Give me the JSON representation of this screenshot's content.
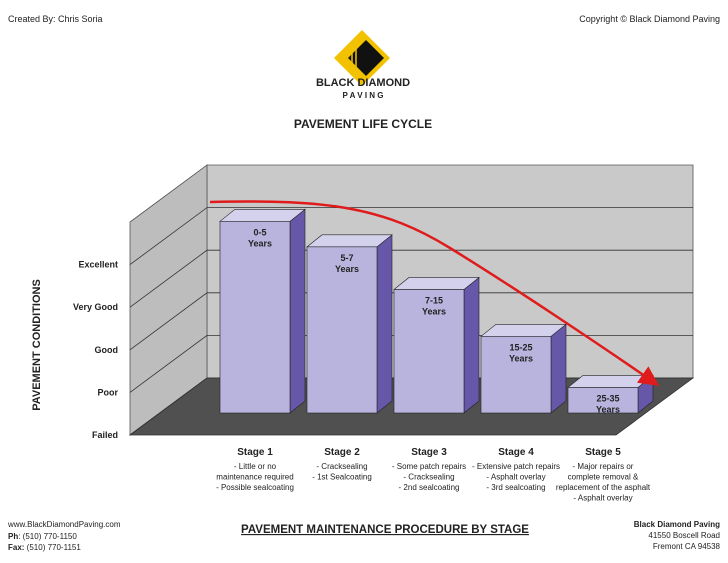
{
  "header": {
    "credit": "Created By: Chris Soria",
    "copyright": "Copyright © Black Diamond Paving",
    "brand": "BLACK DIAMOND",
    "brand_sub": "P A V I N G"
  },
  "chart_data": {
    "type": "bar3d",
    "title": "PAVEMENT LIFE CYCLE",
    "y_label": "PAVEMENT CONDITIONS",
    "categories": [
      "Stage 1",
      "Stage 2",
      "Stage 3",
      "Stage 4",
      "Stage 5"
    ],
    "values": [
      4.5,
      3.9,
      2.9,
      1.8,
      0.6
    ],
    "bar_labels": [
      [
        "0-5",
        "Years"
      ],
      [
        "5-7",
        "Years"
      ],
      [
        "7-15",
        "Years"
      ],
      [
        "15-25",
        "Years"
      ],
      [
        "25-35",
        "Years"
      ]
    ],
    "descriptions": [
      [
        "- Little or no",
        "maintenance required",
        "- Possible sealcoating"
      ],
      [
        "- Cracksealing",
        "- 1st Sealcoating"
      ],
      [
        "- Some patch repairs",
        "- Cracksealing",
        "- 2nd sealcoating"
      ],
      [
        "- Extensive patch repairs",
        "- Asphalt overlay",
        "- 3rd sealcoating"
      ],
      [
        "- Major repairs or",
        "complete removal &",
        "replacement of the asphalt",
        "- Asphalt overlay"
      ]
    ],
    "ylim": [
      0,
      5
    ],
    "yticks": [
      {
        "value": 0,
        "label": "Failed"
      },
      {
        "value": 1,
        "label": "Poor"
      },
      {
        "value": 2,
        "label": "Good"
      },
      {
        "value": 3,
        "label": "Very Good"
      },
      {
        "value": 4,
        "label": "Excellent"
      }
    ],
    "color": "#b8b4de",
    "grid": true
  },
  "footer": {
    "website": "www.BlackDiamondPaving.com",
    "phone_label": "Ph",
    "phone": ": (510) 770-1150",
    "fax_label": "Fax:",
    "fax": " (510) 770-1151",
    "caption": "PAVEMENT MAINTENANCE PROCEDURE BY STAGE",
    "company": "Black Diamond Paving",
    "address1": "41550 Boscell Road",
    "address2": "Fremont CA 94538"
  }
}
